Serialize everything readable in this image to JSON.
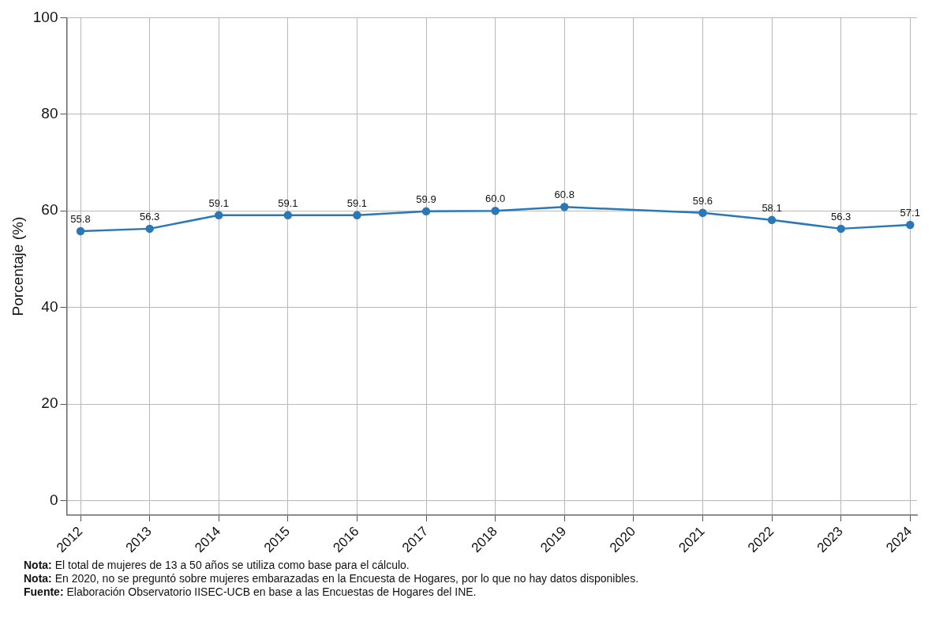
{
  "chart_data": {
    "type": "line",
    "ylabel": "Porcentaje (%)",
    "x": [
      2012,
      2013,
      2014,
      2015,
      2016,
      2017,
      2018,
      2019,
      2021,
      2022,
      2023,
      2024
    ],
    "series": [
      {
        "color": "#2a78b5",
        "values": [
          55.8,
          56.3,
          59.1,
          59.1,
          59.1,
          59.9,
          60.0,
          60.8,
          59.6,
          58.1,
          56.3,
          57.1
        ],
        "value_labels": [
          "55.8",
          "56.3",
          "59.1",
          "59.1",
          "59.1",
          "59.9",
          "60.0",
          "60.8",
          "59.6",
          "58.1",
          "56.3",
          "57.1"
        ]
      }
    ],
    "xlim": [
      2011.8,
      2024.1
    ],
    "xticks": [
      2012,
      2013,
      2014,
      2015,
      2016,
      2017,
      2018,
      2019,
      2020,
      2021,
      2022,
      2023,
      2024
    ],
    "ylim": [
      -3,
      100
    ],
    "yticks": [
      0,
      20,
      40,
      60,
      80,
      100
    ],
    "grid": true,
    "legend": false,
    "marker": "circle",
    "line_style": "solid",
    "annotations": [
      "Nota: El total de mujeres de 13 a 50 años se utiliza como base para el cálculo.",
      "Nota: En 2020, no se preguntó sobre mujeres embarazadas en la Encuesta de Hogares, por lo que no hay datos disponibles.",
      "Fuente: Elaboración Observatorio IISEC-UCB en base a las Encuestas de Hogares del INE."
    ]
  }
}
